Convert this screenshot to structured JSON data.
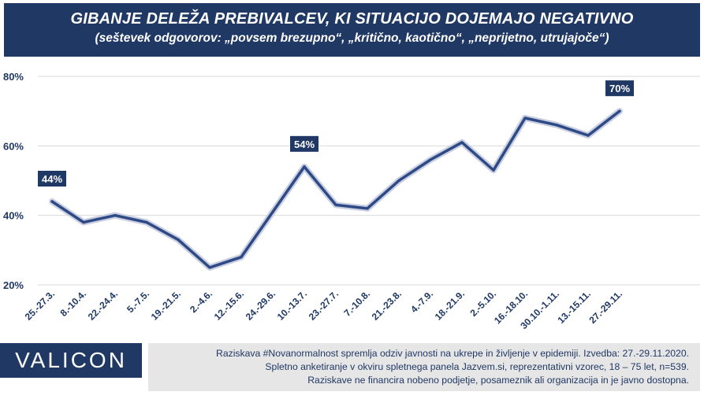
{
  "header": {
    "title": "GIBANJE DELEŽA PREBIVALCEV, KI SITUACIJO DOJEMAJO NEGATIVNO",
    "subtitle": "(seštevek odgovorov: „povsem brezupno“, „kritično, kaotično“, „neprijetno, utrujajoče“)"
  },
  "footer": {
    "logo_text": "VALICON",
    "note_lines": [
      "Raziskava #Novanormalnost spremlja  odziv javnosti  na ukrepe in življenje v epidemiji.  Izvedba: 27.-29.11.2020.",
      "Spletno anketiranje v okviru  spletnega panela Jazvem.si, reprezentativni vzorec, 18 – 75 let, n=539.",
      "Raziskave ne financira nobeno podjetje, posameznik ali organizacija in je javno dostopna."
    ]
  },
  "colors": {
    "accent": "#1f3864",
    "line": "#2e4a86",
    "line_glow": "#c9cfe0",
    "grid": "#d9d9d9",
    "footer_note_bg": "#e7e6e6"
  },
  "chart_data": {
    "type": "line",
    "title": "GIBANJE DELEŽA PREBIVALCEV, KI SITUACIJO DOJEMAJO NEGATIVNO",
    "xlabel": "",
    "ylabel": "",
    "categories": [
      "25.-27.3.",
      "8.-10.4.",
      "22.-24.4.",
      "5.-7.5.",
      "19.-21.5.",
      "2.-4.6.",
      "12.-15.6.",
      "24.-29.6.",
      "10.-13.7.",
      "23.-27.7.",
      "7.-10.8.",
      "21.-23.8.",
      "4.-7.9.",
      "18.-21.9.",
      "2.-5.10.",
      "16.-18.10.",
      "30.10.-1.11.",
      "13.-15.11.",
      "27.-29.11."
    ],
    "series": [
      {
        "name": "",
        "values": [
          44,
          38,
          40,
          38,
          33,
          25,
          28,
          41,
          54,
          43,
          42,
          50,
          56,
          61,
          53,
          68,
          66,
          63,
          70
        ]
      }
    ],
    "ylim": [
      20,
      80
    ],
    "yticks": [
      20,
      40,
      60,
      80
    ],
    "ytick_labels": [
      "20%",
      "40%",
      "60%",
      "80%"
    ],
    "data_labels": [
      {
        "index": 0,
        "text": "44%"
      },
      {
        "index": 8,
        "text": "54%"
      },
      {
        "index": 18,
        "text": "70%"
      }
    ],
    "grid": true,
    "legend": "none"
  }
}
